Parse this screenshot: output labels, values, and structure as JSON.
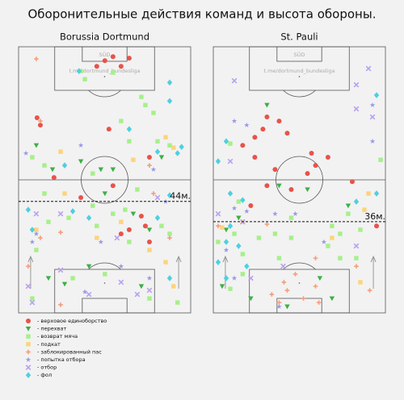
{
  "title": "Оборонительные действия команд и высота обороны.",
  "stand_label": "SÜD",
  "watermark": "t.me/dortmund_bundesliga",
  "legend": [
    {
      "name": "- верховое единоборство",
      "color": "#e8534a",
      "marker": "circle"
    },
    {
      "name": "- перехват",
      "color": "#3cb043",
      "marker": "triangle"
    },
    {
      "name": "- возврат мяча",
      "color": "#a6f08a",
      "marker": "square"
    },
    {
      "name": "- подкат",
      "color": "#fcd47a",
      "marker": "square"
    },
    {
      "name": "- заблокированный пас",
      "color": "#f59d7a",
      "marker": "plus"
    },
    {
      "name": "- попытка отбора",
      "color": "#9a9ae8",
      "marker": "star"
    },
    {
      "name": "- отбор",
      "color": "#b8a0f0",
      "marker": "x"
    },
    {
      "name": "- фол",
      "color": "#4dd0e1",
      "marker": "diamond"
    }
  ],
  "chart_data": [
    {
      "type": "scatter",
      "title": "Borussia Dortmund",
      "xlim": [
        0,
        68
      ],
      "ylim": [
        0,
        105
      ],
      "line_value": 44,
      "line_label": "44м.",
      "series": [
        {
          "x": [
            34.1,
            37.3,
            40.5,
            43.7,
            30.9,
            7.3,
            8.6,
            35.7,
            14.0,
            51.7,
            24.6,
            37.3,
            48.5,
            50.1,
            43.7,
            51.7,
            40.5
          ],
          "y": [
            99.5,
            101.1,
            97.3,
            100.5,
            97.3,
            77.0,
            74.1,
            72.5,
            53.4,
            61.4,
            45.5,
            50.2,
            38.2,
            34.3,
            32.8,
            28.0,
            31.2
          ]
        },
        {
          "x": [
            7.0,
            13.4,
            24.6,
            32.5,
            37.3,
            56.5,
            45.3,
            51.7,
            11.8,
            18.2,
            27.8,
            48.5,
            34.1
          ],
          "y": [
            66.1,
            56.6,
            59.8,
            56.6,
            56.6,
            61.4,
            39.1,
            32.8,
            13.7,
            11.4,
            18.4,
            10.5,
            47.1
          ]
        },
        {
          "x": [
            24.6,
            26.2,
            37.3,
            48.5,
            50.1,
            40.5,
            43.7,
            54.9,
            59.7,
            5.4,
            10.2,
            29.3,
            46.9,
            10.2,
            11.8,
            19.8,
            29.3,
            37.3,
            42.1,
            43.7,
            56.5,
            59.7,
            7.0,
            21.4,
            34.1,
            51.7,
            62.8,
            5.4,
            30.9,
            53.3
          ],
          "y": [
            95.4,
            92.2,
            94.8,
            85.2,
            82.0,
            75.7,
            67.7,
            67.7,
            66.1,
            61.4,
            58.2,
            55.0,
            48.7,
            47.1,
            35.9,
            37.5,
            42.3,
            39.1,
            40.7,
            28.0,
            34.3,
            31.2,
            24.8,
            13.7,
            15.3,
            5.7,
            4.1,
            5.7,
            34.3,
            78.9
          ]
        },
        {
          "x": [
            16.6,
            45.3,
            58.1,
            61.2,
            7.0,
            30.9,
            51.7,
            58.1,
            61.2,
            18.2,
            40.5
          ],
          "y": [
            63.6,
            60.4,
            69.3,
            65.2,
            32.8,
            29.6,
            24.8,
            20.0,
            10.5,
            47.1,
            35.9
          ]
        },
        {
          "x": [
            7.0,
            8.6,
            8.6,
            16.6,
            59.7,
            3.8,
            16.6,
            53.3,
            51.7
          ],
          "y": [
            100.2,
            75.7,
            29.6,
            31.8,
            29.6,
            18.4,
            3.2,
            47.1,
            58.2
          ]
        },
        {
          "x": [
            2.9,
            24.6,
            53.3,
            58.1,
            7.0,
            5.4,
            32.5,
            40.5,
            26.2,
            51.7
          ],
          "y": [
            63.0,
            66.1,
            56.6,
            43.9,
            31.2,
            28.0,
            28.0,
            18.4,
            8.3,
            13.7
          ]
        },
        {
          "x": [
            7.0,
            16.6,
            38.9,
            16.6,
            27.8,
            40.5,
            46.9,
            51.7,
            3.8,
            5.4,
            54.9
          ],
          "y": [
            39.1,
            39.1,
            29.6,
            16.9,
            7.3,
            12.1,
            7.3,
            8.9,
            10.5,
            4.1,
            45.5
          ]
        },
        {
          "x": [
            23.9,
            59.7,
            59.7,
            43.7,
            64.4,
            54.9,
            62.8,
            18.2,
            3.8,
            27.8,
            5.4,
            21.4,
            59.7,
            54.9,
            59.7
          ],
          "y": [
            95.4,
            90.9,
            83.6,
            72.5,
            65.5,
            63.6,
            63.0,
            58.2,
            40.7,
            37.5,
            32.8,
            40.1,
            13.7,
            37.5,
            46.4
          ]
        }
      ]
    },
    {
      "type": "scatter",
      "title": "St. Pauli",
      "xlim": [
        0,
        68
      ],
      "ylim": [
        0,
        105
      ],
      "line_value": 36,
      "line_label": "36м.",
      "series": [
        {
          "x": [
            21.2,
            26.0,
            19.6,
            16.4,
            11.6,
            16.4,
            29.2,
            24.4,
            38.8,
            45.3,
            30.8,
            40.4,
            54.9,
            64.5,
            14.8,
            21.2,
            37.2
          ],
          "y": [
            77.3,
            75.7,
            72.5,
            69.3,
            66.1,
            61.4,
            70.9,
            56.6,
            63.0,
            61.4,
            48.7,
            58.2,
            51.8,
            34.3,
            42.3,
            50.2,
            55.0
          ]
        },
        {
          "x": [
            21.2,
            26.0,
            37.2,
            53.3,
            10.0,
            5.1,
            3.5,
            14.8,
            46.9,
            42.1,
            29.2
          ],
          "y": [
            82.0,
            50.2,
            48.7,
            42.3,
            37.5,
            32.8,
            10.5,
            5.7,
            5.7,
            13.7,
            2.5
          ]
        },
        {
          "x": [
            6.7,
            10.0,
            1.9,
            8.3,
            11.6,
            18.0,
            24.4,
            30.8,
            46.9,
            50.1,
            58.1,
            56.5,
            66.1,
            50.1,
            11.6,
            6.7,
            26.0,
            45.3,
            30.8,
            53.3
          ],
          "y": [
            66.8,
            43.9,
            28.0,
            31.2,
            23.2,
            29.6,
            31.2,
            37.5,
            34.3,
            31.2,
            32.8,
            21.6,
            60.4,
            21.6,
            15.3,
            9.5,
            21.6,
            26.4,
            29.6,
            39.1
          ]
        },
        {
          "x": [
            3.5,
            11.6,
            58.1,
            59.7,
            61.3,
            46.9
          ],
          "y": [
            33.7,
            35.9,
            12.1,
            40.7,
            47.1,
            29.6
          ]
        },
        {
          "x": [
            1.9,
            21.2,
            23.1,
            27.9,
            29.2,
            35.6,
            40.4,
            41.7,
            26.0,
            40.4,
            56.5,
            61.8,
            32.4
          ],
          "y": [
            34.3,
            35.0,
            7.3,
            12.1,
            8.9,
            5.7,
            10.5,
            4.1,
            4.1,
            21.6,
            18.4,
            8.9,
            15.3
          ]
        },
        {
          "x": [
            8.3,
            13.2,
            8.3,
            13.2,
            5.1,
            8.3,
            24.4,
            32.4,
            43.7,
            26.0,
            62.9,
            62.9
          ],
          "y": [
            75.7,
            74.1,
            41.3,
            40.1,
            24.8,
            13.7,
            39.1,
            39.1,
            28.0,
            2.5,
            82.0,
            67.7
          ]
        },
        {
          "x": [
            8.3,
            6.7,
            56.5,
            56.5,
            61.3,
            62.9,
            14.8,
            56.5,
            11.6,
            1.9,
            27.6
          ],
          "y": [
            91.6,
            59.8,
            90.0,
            80.5,
            96.4,
            77.3,
            13.7,
            26.4,
            35.9,
            39.1,
            18.4
          ]
        },
        {
          "x": [
            64.5,
            5.1,
            1.9,
            6.7,
            11.6,
            6.7,
            5.1,
            10.0,
            1.9,
            13.2,
            5.1,
            56.5,
            64.5
          ],
          "y": [
            85.9,
            67.7,
            59.8,
            47.1,
            44.5,
            34.3,
            28.0,
            26.4,
            20.0,
            18.4,
            13.7,
            43.9,
            47.1
          ]
        }
      ]
    }
  ]
}
